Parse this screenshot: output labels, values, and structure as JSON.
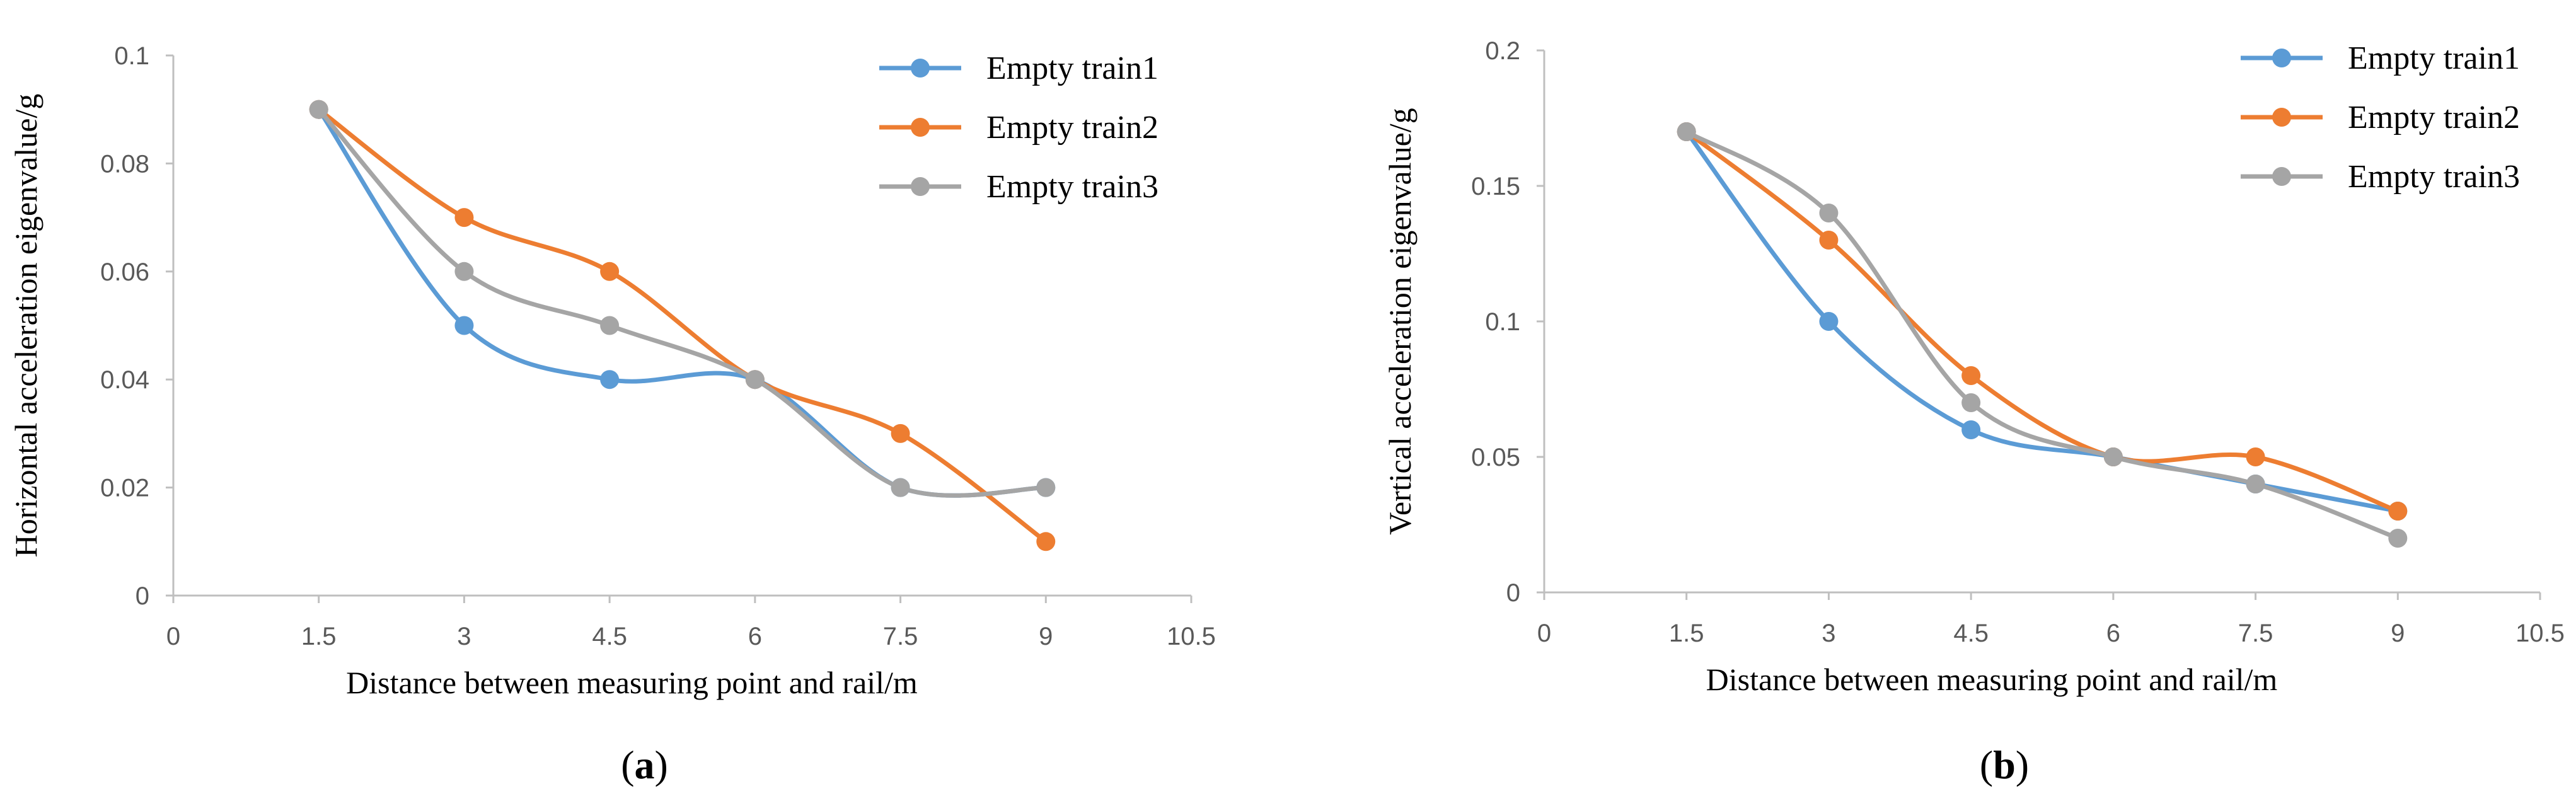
{
  "chart_data": [
    {
      "type": "line",
      "caption_open": "(",
      "caption_letter": "a",
      "caption_close": ")",
      "xlabel": "Distance between measuring point and rail/m",
      "ylabel": "Horizontal acceleration eigenvalue/g",
      "xlim": [
        0,
        10.5
      ],
      "ylim": [
        0,
        0.1
      ],
      "xticks": [
        "0",
        "1.5",
        "3",
        "4.5",
        "6",
        "7.5",
        "9",
        "10.5"
      ],
      "yticks": [
        "0",
        "0.02",
        "0.04",
        "0.06",
        "0.08",
        "0.1"
      ],
      "legend_position": "top-right",
      "grid": false,
      "x": [
        1.5,
        3,
        4.5,
        6,
        7.5,
        9
      ],
      "series": [
        {
          "name": "Empty train1",
          "color": "#5B9BD5",
          "values": [
            0.09,
            0.05,
            0.04,
            0.04,
            0.02,
            0.02
          ]
        },
        {
          "name": "Empty train2",
          "color": "#ED7D31",
          "values": [
            0.09,
            0.07,
            0.06,
            0.04,
            0.03,
            0.01
          ]
        },
        {
          "name": "Empty train3",
          "color": "#A5A5A5",
          "values": [
            0.09,
            0.06,
            0.05,
            0.04,
            0.02,
            0.02
          ]
        }
      ]
    },
    {
      "type": "line",
      "caption_open": "(",
      "caption_letter": "b",
      "caption_close": ")",
      "xlabel": "Distance between measuring point and rail/m",
      "ylabel": "Vertical acceleration eigenvalue/g",
      "xlim": [
        0,
        10.5
      ],
      "ylim": [
        0,
        0.2
      ],
      "xticks": [
        "0",
        "1.5",
        "3",
        "4.5",
        "6",
        "7.5",
        "9",
        "10.5"
      ],
      "yticks": [
        "0",
        "0.05",
        "0.1",
        "0.15",
        "0.2"
      ],
      "legend_position": "top-right",
      "grid": false,
      "x": [
        1.5,
        3,
        4.5,
        6,
        7.5,
        9
      ],
      "series": [
        {
          "name": "Empty train1",
          "color": "#5B9BD5",
          "values": [
            0.17,
            0.1,
            0.06,
            0.05,
            0.04,
            0.03
          ]
        },
        {
          "name": "Empty train2",
          "color": "#ED7D31",
          "values": [
            0.17,
            0.13,
            0.08,
            0.05,
            0.05,
            0.03
          ]
        },
        {
          "name": "Empty train3",
          "color": "#A5A5A5",
          "values": [
            0.17,
            0.14,
            0.07,
            0.05,
            0.04,
            0.02
          ]
        }
      ]
    }
  ]
}
